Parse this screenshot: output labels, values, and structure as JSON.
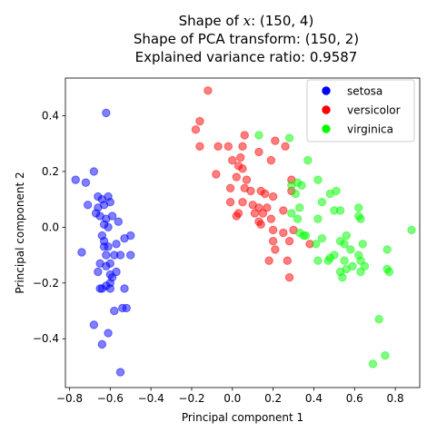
{
  "chart_data": {
    "type": "scatter",
    "title_lines": [
      {
        "before": "Shape of ",
        "math": "x",
        "after": ": (150, 4)"
      },
      {
        "text": "Shape of PCA transform: (150, 2)"
      },
      {
        "text": "Explained variance ratio: 0.9587"
      }
    ],
    "xlabel": "Principal component 1",
    "ylabel": "Principal component 2",
    "xlim": [
      -0.82,
      0.92
    ],
    "ylim": [
      -0.575,
      0.535
    ],
    "xticks": [
      -0.8,
      -0.6,
      -0.4,
      -0.2,
      0.0,
      0.2,
      0.4,
      0.6,
      0.8
    ],
    "xtick_labels": [
      "−0.8",
      "−0.6",
      "−0.4",
      "−0.2",
      "0.0",
      "0.2",
      "0.4",
      "0.6",
      "0.8"
    ],
    "yticks": [
      -0.4,
      -0.2,
      0.0,
      0.2,
      0.4
    ],
    "ytick_labels": [
      "−0.4",
      "−0.2",
      "0.0",
      "0.2",
      "0.4"
    ],
    "grid": false,
    "legend_position": "top-right",
    "point_alpha": 0.5,
    "series": [
      {
        "name": "setosa",
        "color": "#0000ff",
        "points": [
          [
            -0.62,
            0.41
          ],
          [
            -0.77,
            0.17
          ],
          [
            -0.72,
            0.16
          ],
          [
            -0.68,
            0.2
          ],
          [
            -0.71,
            0.08
          ],
          [
            -0.66,
            0.11
          ],
          [
            -0.64,
            0.1
          ],
          [
            -0.61,
            0.11
          ],
          [
            -0.6,
            0.09
          ],
          [
            -0.66,
            0.07
          ],
          [
            -0.63,
            0.08
          ],
          [
            -0.59,
            0.04
          ],
          [
            -0.67,
            0.05
          ],
          [
            -0.65,
            0.04
          ],
          [
            -0.62,
            0.03
          ],
          [
            -0.63,
            0.01
          ],
          [
            -0.61,
            0.0
          ],
          [
            -0.56,
            0.02
          ],
          [
            -0.5,
            -0.03
          ],
          [
            -0.53,
            -0.04
          ],
          [
            -0.64,
            -0.03
          ],
          [
            -0.63,
            -0.07
          ],
          [
            -0.61,
            -0.07
          ],
          [
            -0.74,
            -0.09
          ],
          [
            -0.62,
            -0.1
          ],
          [
            -0.58,
            -0.1
          ],
          [
            -0.55,
            -0.1
          ],
          [
            -0.5,
            -0.1
          ],
          [
            -0.65,
            -0.13
          ],
          [
            -0.62,
            -0.14
          ],
          [
            -0.57,
            -0.16
          ],
          [
            -0.6,
            -0.17
          ],
          [
            -0.59,
            -0.18
          ],
          [
            -0.6,
            -0.2
          ],
          [
            -0.62,
            -0.21
          ],
          [
            -0.64,
            -0.22
          ],
          [
            -0.6,
            -0.22
          ],
          [
            -0.53,
            -0.22
          ],
          [
            -0.52,
            -0.29
          ],
          [
            -0.54,
            -0.29
          ],
          [
            -0.58,
            -0.3
          ],
          [
            -0.68,
            -0.35
          ],
          [
            -0.61,
            -0.38
          ],
          [
            -0.64,
            -0.42
          ],
          [
            -0.55,
            -0.52
          ],
          [
            -0.65,
            -0.22
          ],
          [
            -0.57,
            -0.06
          ],
          [
            -0.6,
            -0.13
          ],
          [
            -0.66,
            -0.16
          ],
          [
            -0.63,
            -0.05
          ]
        ]
      },
      {
        "name": "versicolor",
        "color": "#ff0000",
        "points": [
          [
            -0.12,
            0.49
          ],
          [
            -0.16,
            0.38
          ],
          [
            -0.18,
            0.35
          ],
          [
            0.06,
            0.33
          ],
          [
            0.21,
            0.31
          ],
          [
            -0.16,
            0.29
          ],
          [
            -0.07,
            0.29
          ],
          [
            -0.02,
            0.29
          ],
          [
            0.05,
            0.29
          ],
          [
            0.13,
            0.27
          ],
          [
            0.26,
            0.29
          ],
          [
            0.04,
            0.25
          ],
          [
            0.0,
            0.24
          ],
          [
            0.19,
            0.24
          ],
          [
            0.03,
            0.22
          ],
          [
            0.05,
            0.21
          ],
          [
            -0.08,
            0.19
          ],
          [
            0.02,
            0.18
          ],
          [
            0.07,
            0.17
          ],
          [
            0.29,
            0.17
          ],
          [
            -0.01,
            0.14
          ],
          [
            0.06,
            0.14
          ],
          [
            0.09,
            0.13
          ],
          [
            0.14,
            0.13
          ],
          [
            0.16,
            0.12
          ],
          [
            0.2,
            0.11
          ],
          [
            0.29,
            0.13
          ],
          [
            -0.01,
            0.09
          ],
          [
            0.05,
            0.09
          ],
          [
            0.1,
            0.08
          ],
          [
            0.13,
            0.07
          ],
          [
            0.17,
            0.07
          ],
          [
            0.03,
            0.05
          ],
          [
            0.11,
            0.05
          ],
          [
            0.15,
            0.05
          ],
          [
            0.25,
            0.06
          ],
          [
            0.02,
            0.04
          ],
          [
            0.13,
            0.02
          ],
          [
            0.19,
            0.03
          ],
          [
            0.14,
            0.01
          ],
          [
            0.2,
            -0.01
          ],
          [
            0.3,
            -0.01
          ],
          [
            0.25,
            -0.02
          ],
          [
            0.2,
            -0.05
          ],
          [
            0.28,
            -0.05
          ],
          [
            0.38,
            -0.06
          ],
          [
            0.21,
            -0.08
          ],
          [
            0.18,
            -0.12
          ],
          [
            0.27,
            -0.12
          ],
          [
            0.28,
            -0.18
          ]
        ]
      },
      {
        "name": "virginica",
        "color": "#00ff00",
        "points": [
          [
            0.13,
            0.33
          ],
          [
            0.28,
            0.32
          ],
          [
            0.37,
            0.24
          ],
          [
            0.42,
            0.17
          ],
          [
            0.29,
            0.15
          ],
          [
            0.32,
            0.16
          ],
          [
            0.34,
            0.15
          ],
          [
            0.31,
            0.12
          ],
          [
            0.48,
            0.12
          ],
          [
            0.51,
            0.13
          ],
          [
            0.44,
            0.09
          ],
          [
            0.33,
            0.07
          ],
          [
            0.5,
            0.06
          ],
          [
            0.53,
            0.06
          ],
          [
            0.29,
            0.05
          ],
          [
            0.32,
            0.03
          ],
          [
            0.42,
            0.03
          ],
          [
            0.62,
            0.07
          ],
          [
            0.62,
            0.04
          ],
          [
            0.63,
            0.03
          ],
          [
            0.88,
            -0.01
          ],
          [
            0.33,
            -0.02
          ],
          [
            0.35,
            -0.03
          ],
          [
            0.36,
            -0.03
          ],
          [
            0.44,
            -0.04
          ],
          [
            0.41,
            -0.06
          ],
          [
            0.53,
            -0.05
          ],
          [
            0.55,
            -0.06
          ],
          [
            0.64,
            -0.06
          ],
          [
            0.56,
            -0.03
          ],
          [
            0.58,
            -0.08
          ],
          [
            0.76,
            -0.08
          ],
          [
            0.5,
            -0.1
          ],
          [
            0.55,
            -0.12
          ],
          [
            0.48,
            -0.11
          ],
          [
            0.42,
            -0.12
          ],
          [
            0.62,
            -0.1
          ],
          [
            0.63,
            -0.12
          ],
          [
            0.65,
            -0.14
          ],
          [
            0.59,
            -0.14
          ],
          [
            0.56,
            -0.15
          ],
          [
            0.53,
            -0.16
          ],
          [
            0.54,
            -0.18
          ],
          [
            0.63,
            -0.16
          ],
          [
            0.77,
            -0.16
          ],
          [
            0.76,
            -0.15
          ],
          [
            0.72,
            -0.33
          ],
          [
            0.75,
            -0.46
          ],
          [
            0.69,
            -0.49
          ],
          [
            0.47,
            -0.12
          ]
        ]
      }
    ]
  }
}
